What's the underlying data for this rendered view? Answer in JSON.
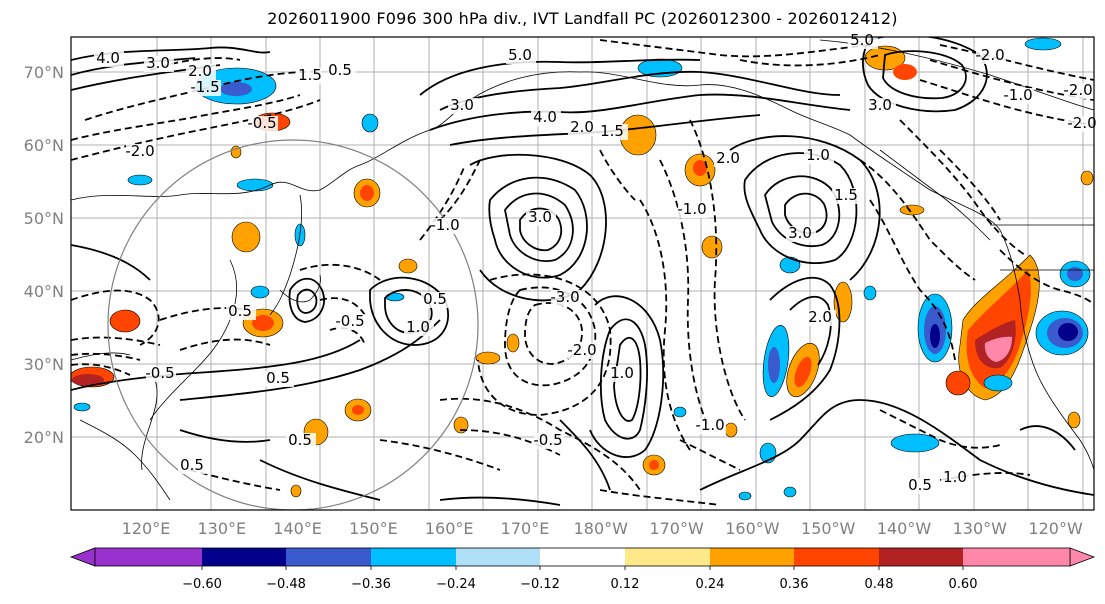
{
  "title": "2026011900 F096 300 hPa div., IVT Landfall PC (2026012300 - 2026012412)",
  "map": {
    "lat_labels": [
      "70°N",
      "60°N",
      "50°N",
      "40°N",
      "30°N",
      "20°N"
    ],
    "lon_labels": [
      "120°E",
      "130°E",
      "140°E",
      "150°E",
      "160°E",
      "170°E",
      "180°W",
      "170°W",
      "160°W",
      "150°W",
      "140°W",
      "130°W",
      "120°W"
    ],
    "contour_labels": [
      "4.0",
      "3.0",
      "2.0",
      "1.5",
      "0.5",
      "-2.0",
      "-1.5",
      "-0.5",
      "3.0",
      "4.0",
      "5.0",
      "2.0",
      "1.5",
      "5.0",
      "-3.0",
      "-2.0",
      "3.0",
      "2.0",
      "1.0",
      "-1.0",
      "3.0",
      "1.5",
      "3.0",
      "-2.0",
      "-2.0",
      "-2.0",
      "0.5",
      "1.0",
      "0.5",
      "-0.5",
      "0.5",
      "-1.0",
      "0.5",
      "-0.5",
      "-1.0",
      "0.5",
      "0.5",
      "1.0",
      "-0.5",
      "2.0",
      "1.0",
      "-1.0"
    ],
    "grid_color": "#b0b0b0",
    "coast_color": "#000000"
  },
  "colorbar": {
    "ticks": [
      "−0.60",
      "−0.48",
      "−0.36",
      "−0.24",
      "−0.12",
      "0.12",
      "0.24",
      "0.36",
      "0.48",
      "0.60"
    ],
    "colors": [
      "#9932cc",
      "#00008b",
      "#3a5bcd",
      "#00bfff",
      "#b0e0f8",
      "#ffffff",
      "#ffe88a",
      "#ffa200",
      "#ff4500",
      "#b22222",
      "#ff88aa"
    ]
  },
  "shading_colors": {
    "neg_light": "#b0e0f8",
    "neg_mid": "#00bfff",
    "neg_deep": "#3a5bcd",
    "neg_darkest": "#00008b",
    "pos_light": "#ffe88a",
    "pos_mid": "#ffa200",
    "pos_strong": "#ff4500",
    "pos_deep": "#b22222",
    "pos_max": "#ff88aa"
  }
}
